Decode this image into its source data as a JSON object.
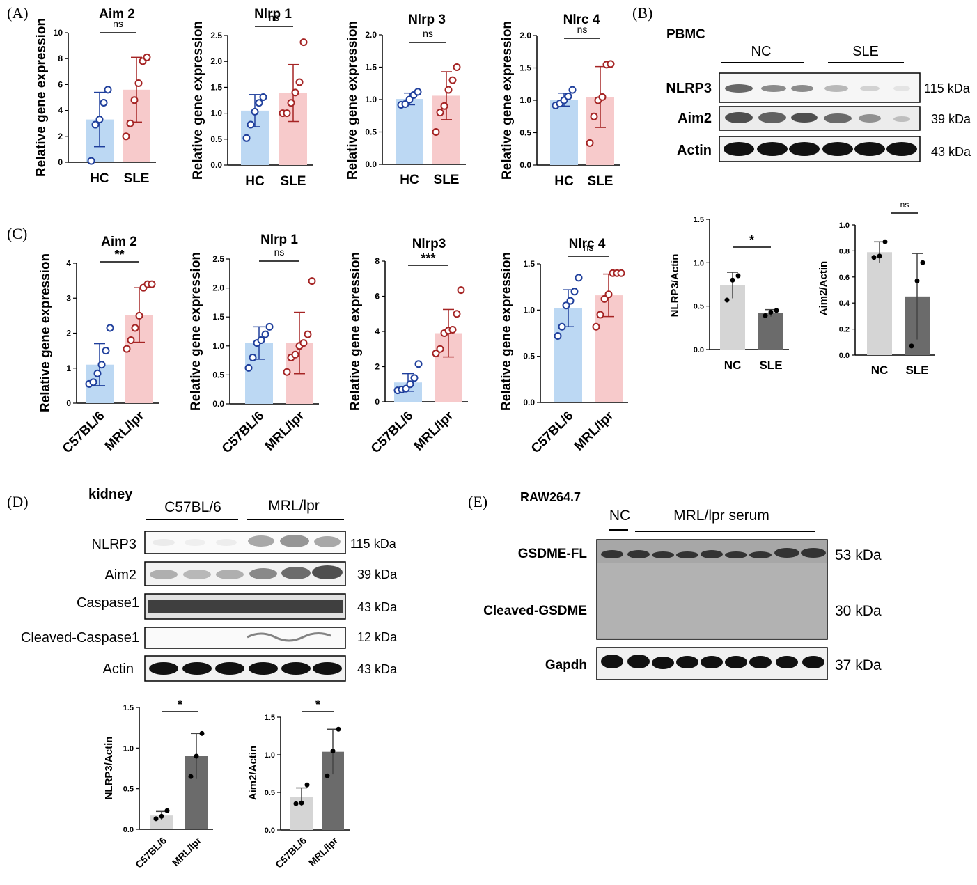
{
  "colors": {
    "hc_fill": "#bcd8f3",
    "hc_point": "#1f3f9c",
    "sle_fill": "#f7cacb",
    "sle_point": "#a52424",
    "wb_nc_fill": "#d5d5d5",
    "wb_sle_fill": "#6b6b6b",
    "point_black": "#000000"
  },
  "panel_letters": {
    "a": "(A)",
    "b": "(B)",
    "c": "(C)",
    "d": "(D)",
    "e": "(E)"
  },
  "axis_label_rel": "Relative gene expression",
  "chart_data": [
    {
      "id": "a_aim2",
      "type": "bar",
      "title": "Aim 2",
      "ylabel": "Relative gene expression",
      "categories": [
        "HC",
        "SLE"
      ],
      "ylim": [
        0,
        10
      ],
      "yticks": [
        0,
        2,
        4,
        6,
        8,
        10
      ],
      "sig": "ns",
      "series": [
        {
          "values": [
            3.3,
            5.6
          ],
          "sd": [
            2.1,
            2.5
          ],
          "points": [
            [
              0.1,
              2.9,
              3.3,
              4.6,
              5.6
            ],
            [
              2.0,
              3.0,
              4.8,
              6.1,
              7.8,
              8.1
            ]
          ]
        }
      ]
    },
    {
      "id": "a_nlrp1",
      "type": "bar",
      "title": "Nlrp 1",
      "ylabel": "Relative gene expression",
      "categories": [
        "HC",
        "SLE"
      ],
      "ylim": [
        0,
        2.5
      ],
      "yticks": [
        0.0,
        0.5,
        1.0,
        1.5,
        2.0,
        2.5
      ],
      "sig": "ns",
      "series": [
        {
          "values": [
            1.05,
            1.39
          ],
          "sd": [
            0.31,
            0.55
          ],
          "points": [
            [
              0.52,
              0.78,
              1.03,
              1.2,
              1.31
            ],
            [
              1.0,
              1.0,
              1.2,
              1.4,
              1.6,
              2.37
            ]
          ]
        }
      ]
    },
    {
      "id": "a_nlrp3",
      "type": "bar",
      "title": "Nlrp 3",
      "ylabel": "Relative gene expression",
      "categories": [
        "HC",
        "SLE"
      ],
      "ylim": [
        0,
        2.0
      ],
      "yticks": [
        0.0,
        0.5,
        1.0,
        1.5,
        2.0
      ],
      "sig": "ns",
      "series": [
        {
          "values": [
            1.01,
            1.06
          ],
          "sd": [
            0.09,
            0.37
          ],
          "points": [
            [
              0.92,
              0.93,
              1.0,
              1.07,
              1.12
            ],
            [
              0.5,
              0.8,
              0.9,
              1.15,
              1.3,
              1.5
            ]
          ]
        }
      ]
    },
    {
      "id": "a_nlrc4",
      "type": "bar",
      "title": "Nlrc 4",
      "ylabel": "Relative gene expression",
      "categories": [
        "HC",
        "SLE"
      ],
      "ylim": [
        0,
        2.0
      ],
      "yticks": [
        0.0,
        0.5,
        1.0,
        1.5,
        2.0
      ],
      "sig": "ns",
      "series": [
        {
          "values": [
            1.01,
            1.05
          ],
          "sd": [
            0.1,
            0.47
          ],
          "points": [
            [
              0.92,
              0.95,
              1.0,
              1.06,
              1.16
            ],
            [
              0.34,
              0.75,
              1.0,
              1.05,
              1.55,
              1.56
            ]
          ]
        }
      ]
    },
    {
      "id": "c_aim2",
      "type": "bar",
      "title": "Aim 2",
      "ylabel": "Relative gene expression",
      "categories": [
        "C57BL/6",
        "MRL/lpr"
      ],
      "ylim": [
        0,
        4
      ],
      "yticks": [
        0,
        1,
        2,
        3,
        4
      ],
      "sig": "**",
      "series": [
        {
          "values": [
            1.1,
            2.52
          ],
          "sd": [
            0.6,
            0.78
          ],
          "points": [
            [
              0.55,
              0.6,
              0.85,
              1.1,
              1.5,
              2.15
            ],
            [
              1.55,
              1.8,
              2.15,
              2.5,
              3.3,
              3.4,
              3.4
            ]
          ]
        }
      ]
    },
    {
      "id": "c_nlrp1",
      "type": "bar",
      "title": "Nlrp 1",
      "ylabel": "Relative gene expression",
      "categories": [
        "C57BL/6",
        "MRL/lpr"
      ],
      "ylim": [
        0,
        2.5
      ],
      "yticks": [
        0.0,
        0.5,
        1.0,
        1.5,
        2.0,
        2.5
      ],
      "sig": "ns",
      "series": [
        {
          "values": [
            1.05,
            1.05
          ],
          "sd": [
            0.28,
            0.53
          ],
          "points": [
            [
              0.62,
              0.8,
              1.05,
              1.1,
              1.2,
              1.33
            ],
            [
              0.55,
              0.8,
              0.85,
              1.0,
              1.05,
              1.2,
              2.12
            ]
          ]
        }
      ]
    },
    {
      "id": "c_nlrp3",
      "type": "bar",
      "title": "Nlrp3",
      "ylabel": "Relative gene expression",
      "categories": [
        "C57BL/6",
        "MRL/lpr"
      ],
      "ylim": [
        0,
        8
      ],
      "yticks": [
        0,
        2,
        4,
        6,
        8
      ],
      "sig": "***",
      "series": [
        {
          "values": [
            1.1,
            3.9
          ],
          "sd": [
            0.5,
            1.35
          ],
          "points": [
            [
              0.65,
              0.7,
              0.75,
              1.0,
              1.35,
              2.15
            ],
            [
              2.75,
              3.0,
              3.9,
              4.05,
              4.1,
              5.0,
              6.35
            ]
          ]
        }
      ]
    },
    {
      "id": "c_nlrc4",
      "type": "bar",
      "title": "Nlrc 4",
      "ylabel": "Relative gene expression",
      "categories": [
        "C57BL/6",
        "MRL/lpr"
      ],
      "ylim": [
        0,
        1.5
      ],
      "yticks": [
        0.0,
        0.5,
        1.0,
        1.5
      ],
      "sig": "ns",
      "series": [
        {
          "values": [
            1.02,
            1.16
          ],
          "sd": [
            0.2,
            0.23
          ],
          "points": [
            [
              0.72,
              0.82,
              1.05,
              1.1,
              1.2,
              1.35
            ],
            [
              0.82,
              0.95,
              1.12,
              1.17,
              1.4,
              1.4,
              1.4
            ]
          ]
        }
      ]
    },
    {
      "id": "b_nlrp3",
      "type": "bar",
      "title": "",
      "ylabel": "NLRP3/Actin",
      "categories": [
        "NC",
        "SLE"
      ],
      "ylim": [
        0,
        1.5
      ],
      "yticks": [
        0.0,
        0.5,
        1.0,
        1.5
      ],
      "sig": "*",
      "series": [
        {
          "values": [
            0.74,
            0.42
          ],
          "sd": [
            0.15,
            0.04
          ],
          "points": [
            [
              0.57,
              0.8,
              0.85
            ],
            [
              0.39,
              0.43,
              0.45
            ]
          ]
        }
      ]
    },
    {
      "id": "b_aim2",
      "type": "bar",
      "title": "",
      "ylabel": "Aim2/Actin",
      "categories": [
        "NC",
        "SLE"
      ],
      "ylim": [
        0,
        1.0
      ],
      "yticks": [
        0.0,
        0.2,
        0.4,
        0.6,
        0.8,
        1.0
      ],
      "sig": "ns",
      "series": [
        {
          "values": [
            0.79,
            0.45
          ],
          "sd": [
            0.08,
            0.33
          ],
          "points": [
            [
              0.75,
              0.76,
              0.87
            ],
            [
              0.07,
              0.57,
              0.71
            ]
          ]
        }
      ]
    },
    {
      "id": "d_nlrp3",
      "type": "bar",
      "title": "",
      "ylabel": "NLRP3/Actin",
      "categories": [
        "C57BL/6",
        "MRL/lpr"
      ],
      "ylim": [
        0,
        1.5
      ],
      "yticks": [
        0.0,
        0.5,
        1.0,
        1.5
      ],
      "sig": "*",
      "series": [
        {
          "values": [
            0.17,
            0.9
          ],
          "sd": [
            0.05,
            0.28
          ],
          "points": [
            [
              0.13,
              0.16,
              0.23
            ],
            [
              0.65,
              0.9,
              1.18
            ]
          ]
        }
      ]
    },
    {
      "id": "d_aim2",
      "type": "bar",
      "title": "",
      "ylabel": "Aim2/Actin",
      "categories": [
        "C57BL/6",
        "MRL/lpr"
      ],
      "ylim": [
        0,
        1.5
      ],
      "yticks": [
        0.0,
        0.5,
        1.0,
        1.5
      ],
      "sig": "*",
      "series": [
        {
          "values": [
            0.44,
            1.04
          ],
          "sd": [
            0.12,
            0.3
          ],
          "points": [
            [
              0.35,
              0.36,
              0.6
            ],
            [
              0.72,
              1.05,
              1.34
            ]
          ]
        }
      ]
    }
  ],
  "blots": {
    "b": {
      "sample": "PBMC",
      "groups": [
        "NC",
        "SLE"
      ],
      "rows": [
        {
          "label": "NLRP3",
          "kda": "115 kDa"
        },
        {
          "label": "Aim2",
          "kda": "39 kDa"
        },
        {
          "label": "Actin",
          "kda": "43 kDa"
        }
      ]
    },
    "d": {
      "sample": "kidney",
      "groups": [
        "C57BL/6",
        "MRL/lpr"
      ],
      "rows": [
        {
          "label": "NLRP3",
          "kda": "115 kDa"
        },
        {
          "label": "Aim2",
          "kda": "39 kDa"
        },
        {
          "label": "Caspase1",
          "kda": "43 kDa"
        },
        {
          "label": "Cleaved-Caspase1",
          "kda": "12 kDa"
        },
        {
          "label": "Actin",
          "kda": "43 kDa"
        }
      ]
    },
    "e": {
      "sample": "RAW264.7",
      "groups": [
        "NC",
        "MRL/lpr serum"
      ],
      "rows": [
        {
          "label": "GSDME-FL",
          "kda": "53 kDa"
        },
        {
          "label": "Cleaved-GSDME",
          "kda": "30 kDa"
        },
        {
          "label": "Gapdh",
          "kda": "37 kDa"
        }
      ]
    }
  }
}
